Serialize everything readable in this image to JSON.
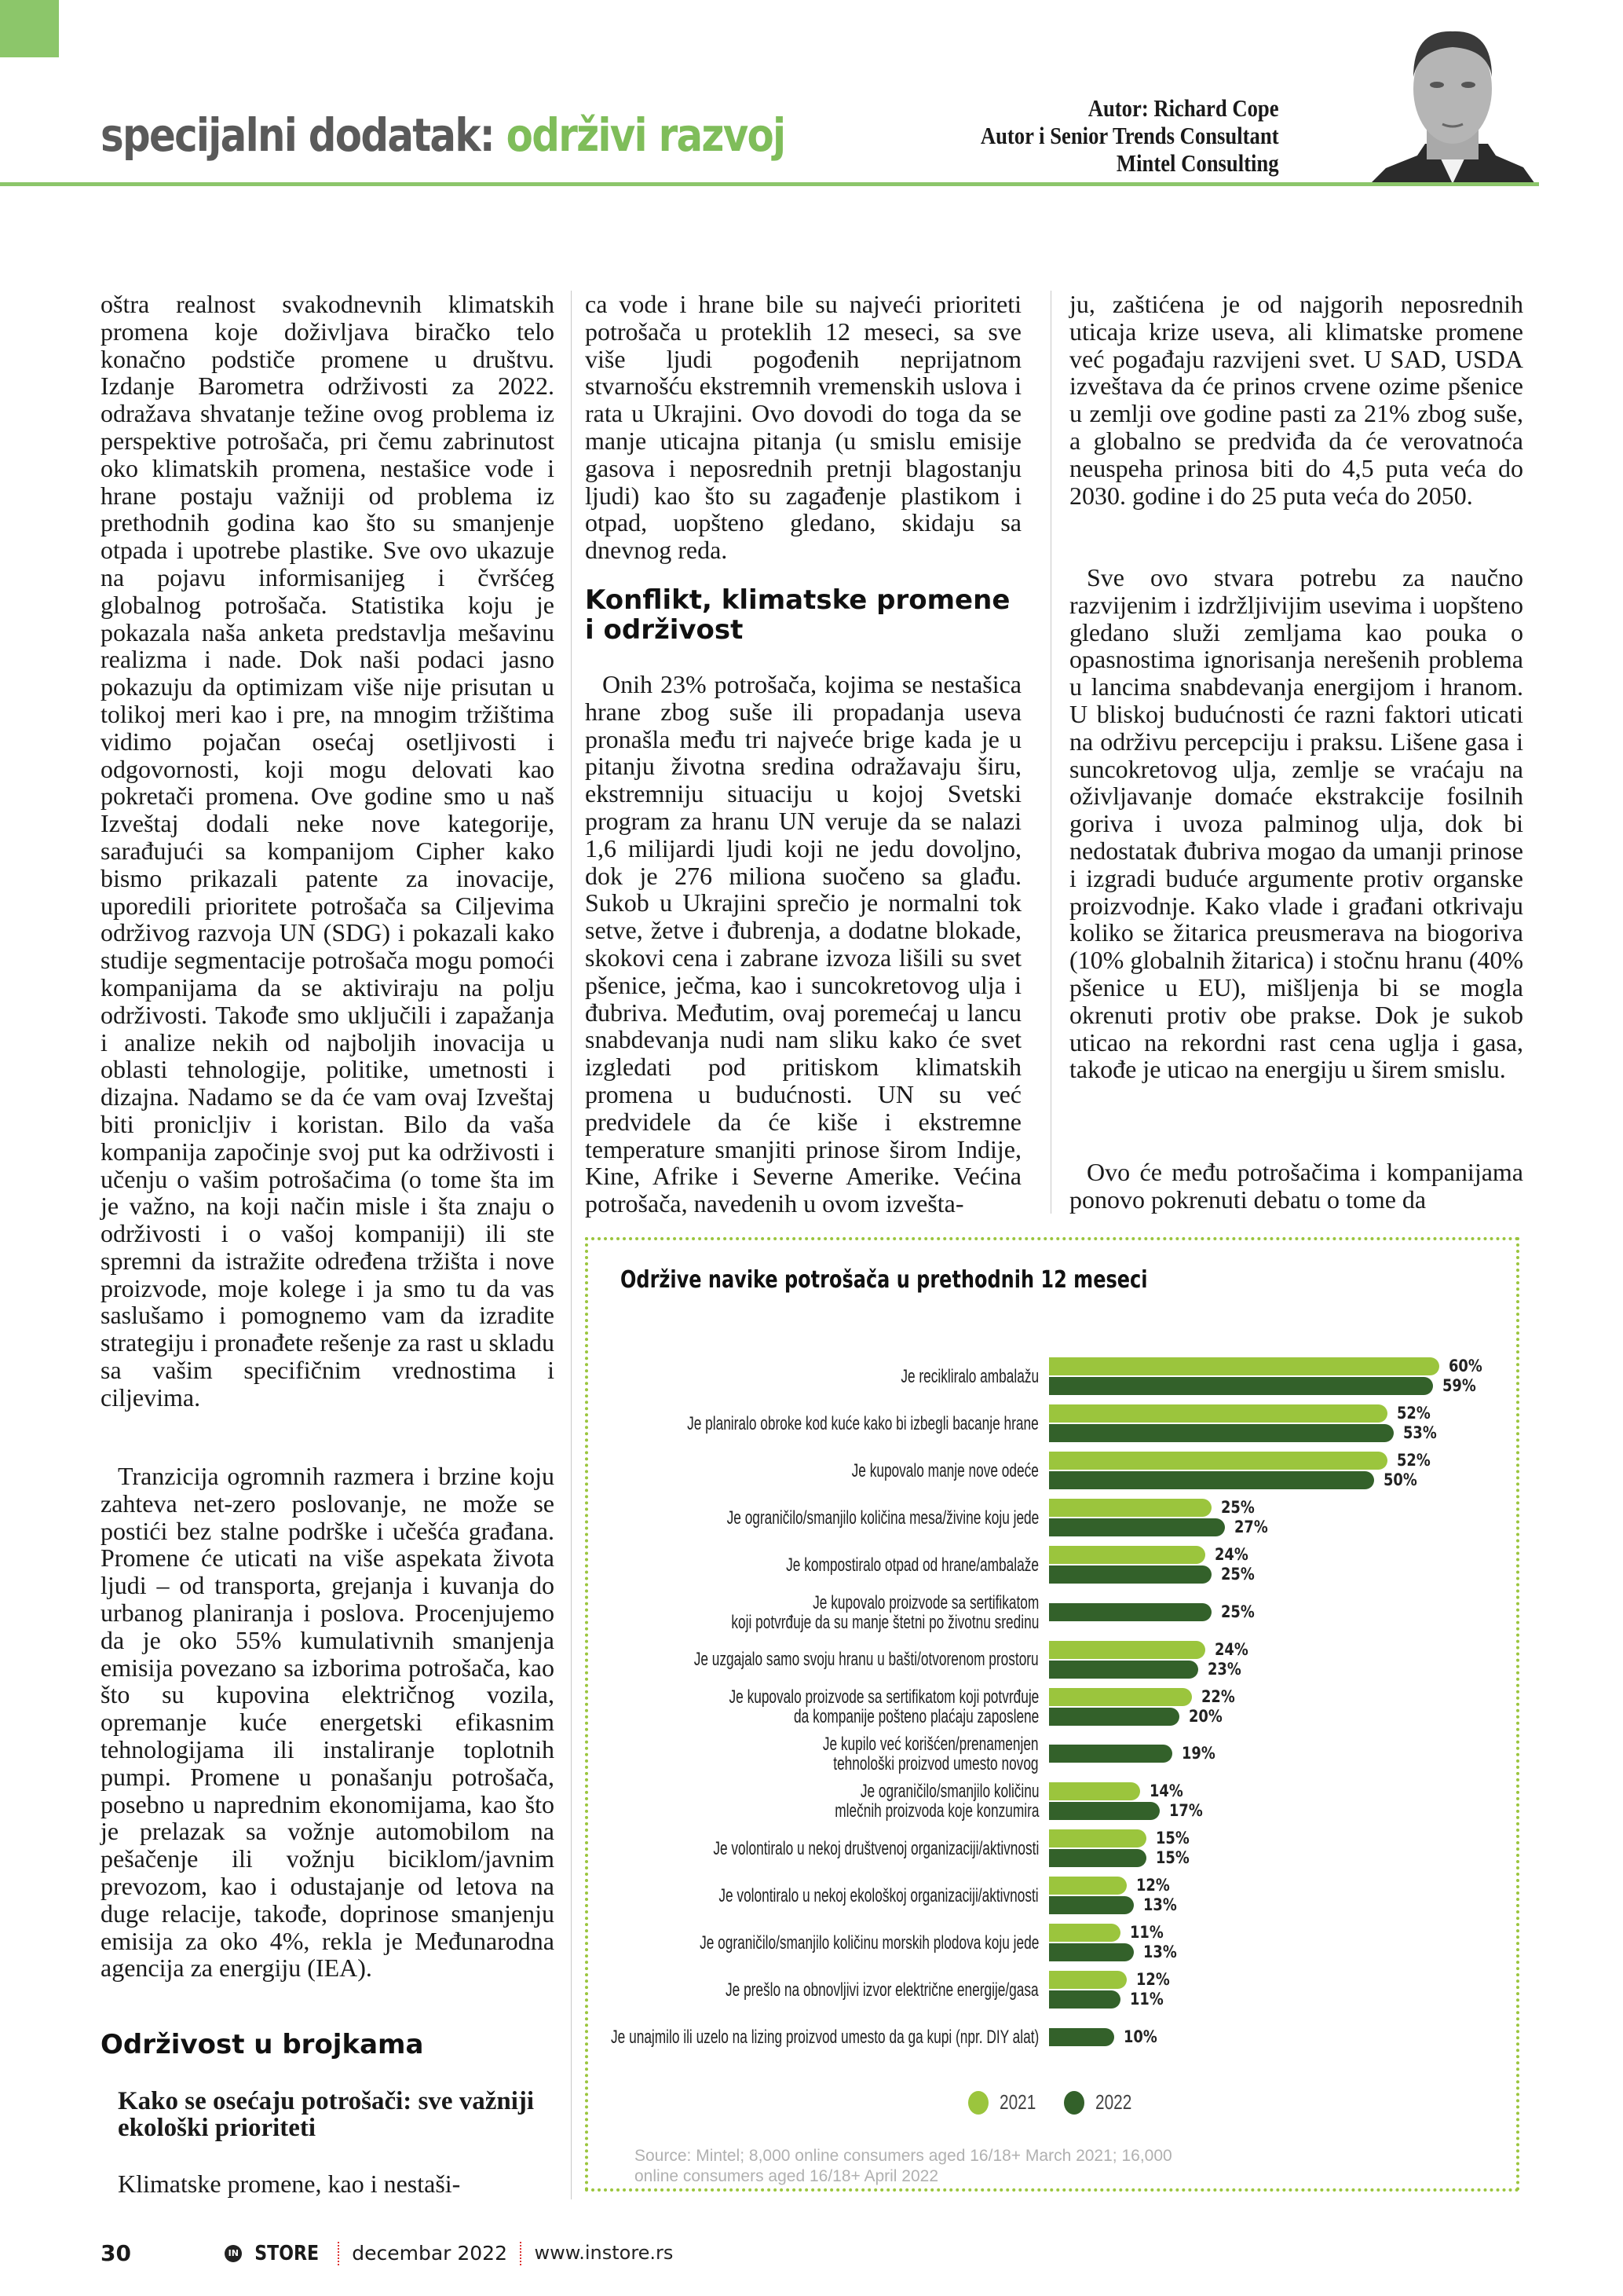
{
  "header": {
    "section_label": "specijalni dodatak:",
    "section_topic": "održivi razvoj",
    "author_lines": [
      "Autor: Richard Cope",
      "Autor i Senior Trends Consultant",
      "Mintel Consulting"
    ],
    "accent_color": "#8cc66a"
  },
  "columns": {
    "col1": {
      "p1": "oštra realnost svakodnevnih klimatskih promena koje doživljava biračko telo konačno podstiče promene u društvu. Izdanje Barometra održivosti za 2022. odražava shvatanje težine ovog problema iz perspektive potrošača, pri čemu zabrinutost oko klimatskih promena, nestašice vode i hrane postaju važniji od problema iz prethodnih godina kao što su smanjenje otpada i upotrebe plastike. Sve ovo ukazuje na pojavu informisanijeg i čvršćeg globalnog potrošača. Statistika koju je pokazala naša anketa predstavlja mešavinu realizma i nade. Dok naši podaci jasno pokazuju da optimizam više nije prisutan u tolikoj meri kao i pre, na mnogim tržištima vidimo pojačan osećaj osetljivosti i odgovornosti, koji mogu delovati kao pokretači promena. Ove godine smo u naš Izveštaj dodali neke nove kategorije, sarađujući sa kompanijom Cipher kako bismo prikazali patente za inovacije, uporedili prioritete potrošača sa Ciljevima održivog razvoja UN (SDG) i pokazali kako studije segmentacije potrošača mogu pomoći kompanijama da se aktiviraju na polju održivosti. Takođe smo uključili i zapažanja i analize nekih od najboljih inovacija u oblasti tehnologije, politike, umetnosti i dizajna. Nadamo se da će vam ovaj Izveštaj biti pronicljiv i koristan. Bilo da vaša kompanija započinje svoj put ka održivosti i učenju o vašim potrošačima (o tome šta im je važno, na koji način misle i šta znaju o održivosti i o vašoj kompaniji) ili ste spremni da istražite određena tržišta i nove proizvode, moje kolege i ja smo tu da vas saslušamo i pomognemo vam da izradite strategiju i pronađete rešenje za rast u skladu sa vašim specifičnim vrednostima i ciljevima.",
      "p2": "Tranzicija ogromnih razmera i brzine koju zahteva net-zero poslovanje, ne može se postići bez stalne podrške i učešća građana. Promene će uticati na više aspekata života ljudi – od transporta, grejanja i kuvanja do urbanog planiranja i poslova. Procenjujemo da je oko 55% kumulativnih smanjenja emisija povezano sa izborima potrošača, kao što su kupovina električnog vozila, opremanje kuće energetski efikasnim tehnologijama ili instaliranje toplotnih pumpi. Promene u ponašanju potrošača, posebno u naprednim ekonomijama, kao što je prelazak sa vožnje automobilom na pešačenje ili vožnju biciklom/javnim prevozom, kao i odustajanje od letova na duge relacije, takođe, doprinose smanjenju emisija za oko 4%, rekla je Međunarodna agencija za energiju (IEA).",
      "heading": "Održivost u brojkama",
      "subheading": "Kako se osećaju potrošači: sve važniji ekološki prioriteti",
      "p3": "Klimatske promene, kao i nestaši-"
    },
    "col2": {
      "p1": "ca vode i hrane bile su najveći prioriteti potrošača u proteklih 12 meseci, sa sve više ljudi pogođenih neprijatnom stvarnošću ekstremnih vremenskih uslova i rata u Ukrajini. Ovo dovodi do toga da se manje uticajna pitanja (u smislu emisije gasova i neposrednih pretnji blagostanju ljudi) kao što su zagađenje plastikom i otpad, uopšteno gledano, skidaju sa dnevnog reda.",
      "heading": "Konflikt, klimatske promene i održivost",
      "p2": "Onih 23% potrošača, kojima se nestašica hrane zbog suše ili propadanja useva pronašla među tri najveće brige kada je u pitanju životna sredina odražavaju širu, ekstremniju situaciju u kojoj Svetski program za hranu UN veruje da se nalazi 1,6 milijardi ljudi koji ne jedu dovoljno, dok je 276 miliona suočeno sa glađu. Sukob u Ukrajini sprečio je normalni tok setve, žetve i đubrenja, a dodatne blokade, skokovi cena i zabrane izvoza lišili su svet pšenice, ječma, kao i suncokretovog ulja i đubriva. Međutim, ovaj poremećaj u lancu snabdevanja nudi nam sliku kako će svet izgledati pod pritiskom klimatskih promena u budućnosti. UN su već predvidele da će kiše i ekstremne temperature smanjiti prinose širom Indije, Kine, Afrike i Severne Amerike. Većina potrošača, navedenih u ovom izvešta-"
    },
    "col3": {
      "p1": "ju, zaštićena je od najgorih neposrednih uticaja krize useva, ali klimatske promene već pogađaju razvijeni svet. U SAD, USDA izveštava da će prinos crvene ozime pšenice u zemlji ove godine pasti za 21% zbog suše, a globalno se predviđa da će verovatnoća neuspeha prinosa biti do 4,5 puta veća do 2030. godine i do 25 puta veća do 2050.",
      "p2": "Sve ovo stvara potrebu za naučno razvijenim i izdržljivijim usevima i uopšteno gledano služi zemljama kao pouka o opasnostima ignorisanja nerešenih problema u lancima snabdevanja energijom i hranom. U bliskoj budućnosti će razni faktori uticati na održivu percepciju i praksu. Lišene gasa i suncokretovog ulja, zemlje se vraćaju na oživljavanje domaće ekstrakcije fosilnih goriva i uvoza palminog ulja, dok bi nedostatak đubriva mogao da umanji prinose i izgradi buduće argumente protiv organske proizvodnje. Kako vlade i građani otkrivaju koliko se žitarica preusmerava na biogoriva (10% globalnih žitarica) i stočnu hranu (40% pšenice u EU), mišljenja bi se mogla okrenuti protiv obe prakse. Dok je sukob uticao na rekordni rast cena uglja i gasa, takođe je uticao na energiju u širem smislu.",
      "p3": "Ovo će među potrošačima i kompanijama ponovo pokrenuti debatu o tome da"
    }
  },
  "chart_data": {
    "type": "bar",
    "orientation": "horizontal",
    "title": "Održive navike potrošača u prethodnih 12 meseci",
    "categories": [
      "Je recikliralo ambalažu",
      "Je planiralo obroke kod kuće kako bi izbegli bacanje hrane",
      "Je kupovalo manje nove odeće",
      "Je ograničilo/smanjilo količina mesa/živine koju jede",
      "Je kompostiralo otpad od hrane/ambalaže",
      "Je kupovalo proizvode sa sertifikatom\nkoji potvrđuje da su manje štetni po životnu sredinu",
      "Je uzgajalo samo svoju hranu u bašti/otvorenom prostoru",
      "Je kupovalo proizvode sa sertifikatom koji potvrđuje\nda kompanije pošteno plaćaju zaposlene",
      "Je kupilo već korišćen/prenamenjen\ntehnološki proizvod umesto novog",
      "Je ograničilo/smanjilo količinu\nmlečnih proizvoda koje konzumira",
      "Je volontiralo u nekoj društvenoj organizaciji/aktivnosti",
      "Je volontiralo u nekoj ekološkoj organizaciji/aktivnosti",
      "Je ograničilo/smanjilo količinu morskih plodova koju jede",
      "Je prešlo na obnovljivi izvor električne energije/gasa",
      "Je unajmilo ili uzelo na lizing proizvod umesto da ga kupi (npr. DIY alat)"
    ],
    "series": [
      {
        "name": "2021",
        "color": "#9bc53d",
        "values": [
          60,
          52,
          52,
          25,
          24,
          null,
          24,
          22,
          null,
          14,
          15,
          12,
          11,
          12,
          null
        ]
      },
      {
        "name": "2022",
        "color": "#33612a",
        "values": [
          59,
          53,
          50,
          27,
          25,
          25,
          23,
          20,
          19,
          17,
          15,
          13,
          13,
          11,
          10
        ]
      }
    ],
    "value_suffix": "%",
    "legend_placement": "bottom",
    "grid": false,
    "source": "Source: Mintel; 8,000 online consumers aged 16/18+ March 2021; 16,000 online consumers aged 16/18+ April 2022"
  },
  "footer": {
    "page_number": "30",
    "logo_in": "IN",
    "logo_store": "STORE",
    "issue": "decembar 2022",
    "url": "www.instore.rs"
  }
}
